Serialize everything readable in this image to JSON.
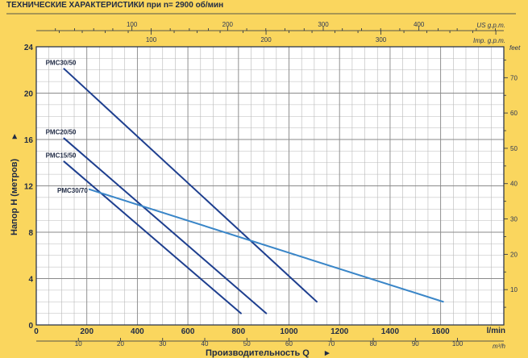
{
  "header": {
    "title": "ТЕХНИЧЕСКИЕ ХАРАКТЕРИСТИКИ при n= 2900 об/мин"
  },
  "colors": {
    "background": "#fad65e",
    "plot_background": "#ffffff",
    "grid": "#b8b8b8",
    "frame": "#1f2a44",
    "series_dark": "#1e3f8f",
    "series_light": "#3a86c8"
  },
  "chart_data": {
    "type": "line",
    "title": "ТЕХНИЧЕСКИЕ ХАРАКТЕРИСТИКИ при n= 2900 об/мин",
    "xlabel": "Производительность Q",
    "ylabel": "Напор H (метров)",
    "xlim": [
      0,
      1850
    ],
    "ylim": [
      0,
      24
    ],
    "x_unit": "l/min",
    "grid": true,
    "x_ticks": [
      0,
      200,
      400,
      600,
      800,
      1000,
      1200,
      1400,
      1600
    ],
    "y_ticks": [
      0,
      4,
      8,
      12,
      16,
      20,
      24
    ],
    "top_axes": [
      {
        "unit": "US g.p.m.",
        "ticks": [
          100,
          200,
          300,
          400
        ]
      },
      {
        "unit": "Imp. g.p.m.",
        "ticks": [
          100,
          200,
          300
        ]
      }
    ],
    "bottom_axis_secondary": {
      "unit": "m³/h",
      "ticks": [
        10,
        20,
        30,
        40,
        50,
        60,
        70,
        80,
        90,
        100
      ]
    },
    "right_axis": {
      "unit": "feet",
      "ticks": [
        10,
        20,
        30,
        40,
        50,
        60,
        70
      ]
    },
    "series": [
      {
        "name": "PMC30/50",
        "x": [
          110,
          1110
        ],
        "y": [
          22.1,
          2.0
        ]
      },
      {
        "name": "PMC20/50",
        "x": [
          110,
          910
        ],
        "y": [
          16.1,
          1.0
        ]
      },
      {
        "name": "PMC15/50",
        "x": [
          110,
          810
        ],
        "y": [
          14.1,
          1.0
        ]
      },
      {
        "name": "PMC30/70",
        "x": [
          210,
          1610
        ],
        "y": [
          11.7,
          2.0
        ]
      }
    ]
  }
}
